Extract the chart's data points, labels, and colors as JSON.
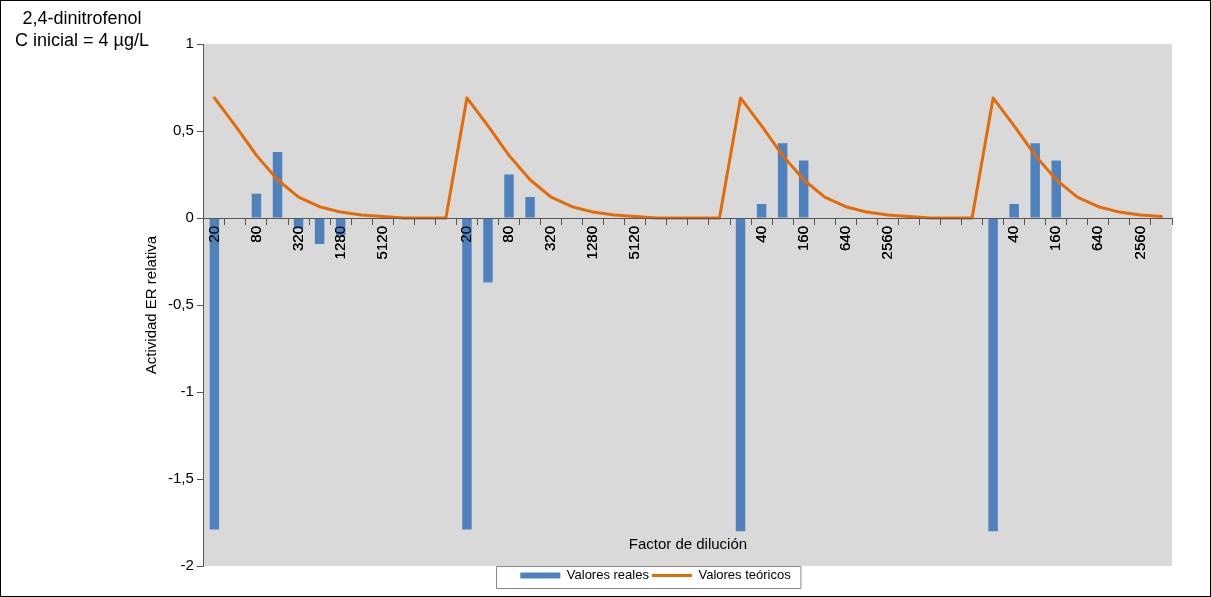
{
  "chart_data": {
    "type": "bar",
    "title": "2,4-dinitrofenol",
    "subtitle": "C inicial = 4 µg/L",
    "xlabel": "Factor de dilución",
    "ylabel": "Actividad ER relativa",
    "categories": [
      "20",
      null,
      "80",
      null,
      "320",
      null,
      "1280",
      null,
      "5120",
      null,
      null,
      null,
      "20",
      null,
      "80",
      null,
      "320",
      null,
      "1280",
      null,
      "5120",
      null,
      null,
      null,
      null,
      null,
      "40",
      null,
      "160",
      null,
      "640",
      null,
      "2560",
      null,
      null,
      null,
      null,
      null,
      "40",
      null,
      "160",
      null,
      "640",
      null,
      "2560",
      null
    ],
    "series": [
      {
        "name": "Valores reales",
        "color": "#4f81bd",
        "values": [
          -1.79,
          null,
          0.14,
          0.38,
          -0.06,
          -0.15,
          -0.1,
          null,
          null,
          null,
          null,
          null,
          -1.79,
          -0.37,
          0.25,
          0.12,
          null,
          null,
          null,
          null,
          null,
          null,
          null,
          null,
          null,
          -1.8,
          0.08,
          0.43,
          0.33,
          null,
          null,
          null,
          null,
          null,
          null,
          null,
          null,
          -1.8,
          0.08,
          0.43,
          0.33,
          null,
          null,
          null,
          null,
          null
        ]
      },
      {
        "name": "Valores teóricos",
        "type": "line",
        "color": "#e36c09",
        "values": [
          0.69,
          0.53,
          0.36,
          0.22,
          0.12,
          0.065,
          0.034,
          0.017,
          0.009,
          0,
          0,
          0,
          0.69,
          0.53,
          0.36,
          0.22,
          0.12,
          0.065,
          0.034,
          0.017,
          0.009,
          0,
          0,
          0,
          0,
          0.69,
          0.53,
          0.36,
          0.22,
          0.12,
          0.065,
          0.034,
          0.017,
          0.009,
          0,
          0,
          0,
          0.69,
          0.53,
          0.36,
          0.22,
          0.12,
          0.065,
          0.034,
          0.017,
          0.009
        ]
      }
    ],
    "ylim": [
      -2,
      1
    ],
    "yticks": [
      -2,
      {
        "value": -1.5,
        "label": "-1,5"
      },
      -1,
      {
        "value": -0.5,
        "label": "-0,5"
      },
      0,
      {
        "value": 0.5,
        "label": "0,5"
      },
      1
    ],
    "grid": false,
    "legend": "bottom",
    "marker": "none",
    "line_style": "solid"
  }
}
